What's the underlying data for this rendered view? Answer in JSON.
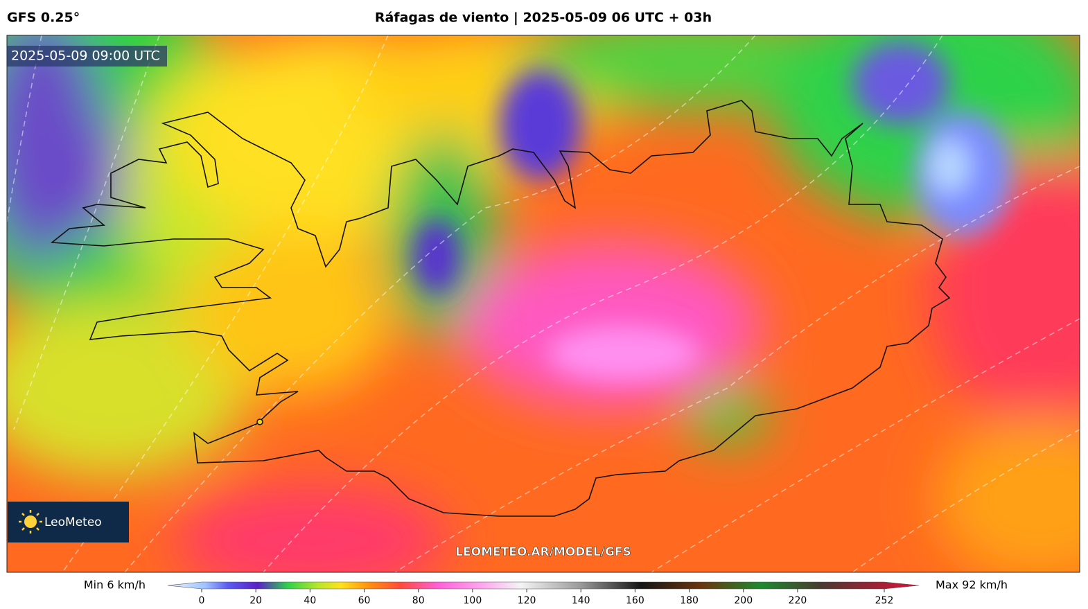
{
  "header": {
    "model": "GFS 0.25°",
    "title": "Ráfagas de viento | 2025-05-09 06 UTC + 03h"
  },
  "map": {
    "timestamp": "2025-05-09 09:00 UTC",
    "watermark": "LEOMETEO.AR/MODEL/GFS",
    "logo": "LeoMeteo"
  },
  "colorbar": {
    "min_label": "Min 6 km/h",
    "max_label": "Max 92 km/h",
    "ticks": [
      0,
      20,
      40,
      60,
      80,
      100,
      120,
      140,
      160,
      180,
      200,
      220,
      252
    ]
  }
}
